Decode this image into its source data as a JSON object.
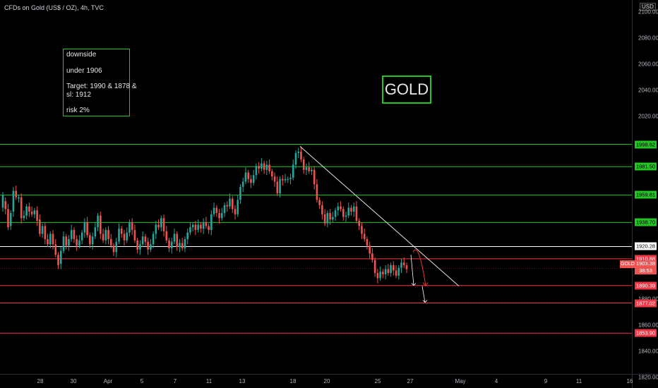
{
  "symbol_title": "CFDs on Gold (US$ / OZ), 4h, TVC",
  "currency": "USD",
  "note": [
    "downside",
    "under 1906",
    "Target: 1990 & 1878 &",
    "sl: 1912",
    "risk 2%"
  ],
  "gold_label": "GOLD",
  "chart_data": {
    "type": "candlestick",
    "title": "CFDs on Gold (US$ / OZ), 4h, TVC",
    "ylim": [
      1815,
      2110
    ],
    "y_ticks": [
      1820,
      1840,
      1860,
      1880,
      2020,
      2040,
      2060,
      2080,
      2100
    ],
    "x_ticks": [
      "28",
      "30",
      "Apr",
      "5",
      "7",
      "11",
      "13",
      "18",
      "20",
      "25",
      "27",
      "May",
      "4",
      "9",
      "11",
      "16"
    ],
    "horizontal_levels": [
      {
        "value": 1998.62,
        "label": "1998.62",
        "color": "#22c522"
      },
      {
        "value": 1981.5,
        "label": "1981.50",
        "color": "#22c522"
      },
      {
        "value": 1959.81,
        "label": "1959.81",
        "color": "#22c522"
      },
      {
        "value": 1938.7,
        "label": "1938.70",
        "color": "#22c522"
      },
      {
        "value": 1920.28,
        "label": "1920.28",
        "color": "#ffffff"
      },
      {
        "value": 1910.88,
        "label": "1910.88",
        "color": "#f23645"
      },
      {
        "value": 1890.39,
        "label": "1890.39",
        "color": "#f23645"
      },
      {
        "value": 1877.02,
        "label": "1877.02",
        "color": "#f23645"
      },
      {
        "value": 1853.9,
        "label": "1853.90",
        "color": "#f23645"
      }
    ],
    "last_price": {
      "symbol": "GOLD",
      "value": "1903.38",
      "countdown": "38:53"
    },
    "price_path": [
      [
        1950,
        1960
      ],
      [
        1955,
        1949
      ],
      [
        1949,
        1935
      ],
      [
        1936,
        1946
      ],
      [
        1947,
        1963
      ],
      [
        1963,
        1958
      ],
      [
        1957,
        1958
      ],
      [
        1958,
        1942
      ],
      [
        1942,
        1944
      ],
      [
        1944,
        1951
      ],
      [
        1951,
        1947
      ],
      [
        1947,
        1945
      ],
      [
        1945,
        1948
      ],
      [
        1948,
        1940
      ],
      [
        1941,
        1930
      ],
      [
        1930,
        1936
      ],
      [
        1936,
        1926
      ],
      [
        1926,
        1922
      ],
      [
        1922,
        1930
      ],
      [
        1930,
        1922
      ],
      [
        1922,
        1914
      ],
      [
        1914,
        1906
      ],
      [
        1907,
        1917
      ],
      [
        1917,
        1928
      ],
      [
        1928,
        1921
      ],
      [
        1921,
        1926
      ],
      [
        1926,
        1933
      ],
      [
        1933,
        1926
      ],
      [
        1926,
        1921
      ],
      [
        1921,
        1925
      ],
      [
        1925,
        1931
      ],
      [
        1931,
        1939
      ],
      [
        1939,
        1929
      ],
      [
        1929,
        1922
      ],
      [
        1922,
        1928
      ],
      [
        1928,
        1935
      ],
      [
        1935,
        1944
      ],
      [
        1944,
        1930
      ],
      [
        1930,
        1925
      ],
      [
        1925,
        1933
      ],
      [
        1933,
        1926
      ],
      [
        1926,
        1921
      ],
      [
        1921,
        1916
      ],
      [
        1916,
        1924
      ],
      [
        1924,
        1934
      ],
      [
        1934,
        1930
      ],
      [
        1930,
        1925
      ],
      [
        1925,
        1931
      ],
      [
        1931,
        1939
      ],
      [
        1939,
        1933
      ],
      [
        1933,
        1925
      ],
      [
        1925,
        1918
      ],
      [
        1918,
        1922
      ],
      [
        1922,
        1928
      ],
      [
        1928,
        1924
      ],
      [
        1924,
        1918
      ],
      [
        1918,
        1922
      ],
      [
        1922,
        1930
      ],
      [
        1930,
        1937
      ],
      [
        1937,
        1935
      ],
      [
        1935,
        1942
      ],
      [
        1942,
        1932
      ],
      [
        1932,
        1925
      ],
      [
        1925,
        1919
      ],
      [
        1919,
        1924
      ],
      [
        1924,
        1930
      ],
      [
        1930,
        1920
      ],
      [
        1920,
        1923
      ],
      [
        1923,
        1919
      ],
      [
        1919,
        1926
      ],
      [
        1926,
        1931
      ],
      [
        1931,
        1935
      ],
      [
        1935,
        1937
      ],
      [
        1937,
        1933
      ],
      [
        1933,
        1937
      ],
      [
        1937,
        1934
      ],
      [
        1934,
        1939
      ],
      [
        1939,
        1936
      ],
      [
        1936,
        1933
      ],
      [
        1933,
        1945
      ],
      [
        1945,
        1950
      ],
      [
        1950,
        1946
      ],
      [
        1946,
        1942
      ],
      [
        1942,
        1946
      ],
      [
        1946,
        1952
      ],
      [
        1952,
        1951
      ],
      [
        1951,
        1957
      ],
      [
        1957,
        1949
      ],
      [
        1949,
        1945
      ],
      [
        1945,
        1956
      ],
      [
        1956,
        1966
      ],
      [
        1966,
        1970
      ],
      [
        1970,
        1977
      ],
      [
        1977,
        1972
      ],
      [
        1972,
        1969
      ],
      [
        1969,
        1975
      ],
      [
        1975,
        1982
      ],
      [
        1982,
        1980
      ],
      [
        1980,
        1984
      ],
      [
        1984,
        1979
      ],
      [
        1979,
        1983
      ],
      [
        1983,
        1978
      ],
      [
        1978,
        1974
      ],
      [
        1974,
        1970
      ],
      [
        1970,
        1961
      ],
      [
        1961,
        1972
      ],
      [
        1972,
        1971
      ],
      [
        1971,
        1972
      ],
      [
        1972,
        1972
      ],
      [
        1972,
        1973
      ],
      [
        1973,
        1983
      ],
      [
        1983,
        1992
      ],
      [
        1992,
        1993
      ],
      [
        1993,
        1987
      ],
      [
        1987,
        1979
      ],
      [
        1979,
        1981
      ],
      [
        1981,
        1978
      ],
      [
        1978,
        1979
      ],
      [
        1979,
        1968
      ],
      [
        1968,
        1956
      ],
      [
        1956,
        1952
      ],
      [
        1952,
        1945
      ],
      [
        1945,
        1938
      ],
      [
        1938,
        1946
      ],
      [
        1946,
        1941
      ],
      [
        1941,
        1943
      ],
      [
        1943,
        1948
      ],
      [
        1948,
        1951
      ],
      [
        1951,
        1949
      ],
      [
        1949,
        1943
      ],
      [
        1943,
        1944
      ],
      [
        1944,
        1950
      ],
      [
        1950,
        1947
      ],
      [
        1947,
        1951
      ],
      [
        1951,
        1940
      ],
      [
        1940,
        1936
      ],
      [
        1936,
        1930
      ],
      [
        1930,
        1926
      ],
      [
        1926,
        1921
      ],
      [
        1921,
        1915
      ],
      [
        1915,
        1910
      ],
      [
        1910,
        1900
      ],
      [
        1900,
        1896
      ],
      [
        1896,
        1901
      ],
      [
        1901,
        1899
      ],
      [
        1899,
        1903
      ],
      [
        1903,
        1900
      ],
      [
        1900,
        1906
      ],
      [
        1906,
        1902
      ],
      [
        1902,
        1898
      ],
      [
        1898,
        1904
      ],
      [
        1904,
        1908
      ],
      [
        1908,
        1906
      ],
      [
        1906,
        1903
      ]
    ],
    "annotations": [
      {
        "type": "trendline",
        "from": [
          "18",
          1997
        ],
        "to": [
          "May",
          1890
        ]
      },
      {
        "type": "arrow",
        "path": "curve",
        "color": "#e53935",
        "to": 1890
      },
      {
        "type": "arrow",
        "path": "straight",
        "color": "#ffffff",
        "to": 1890
      },
      {
        "type": "arrow",
        "path": "straight",
        "color": "#ffffff",
        "to": 1877
      }
    ]
  }
}
